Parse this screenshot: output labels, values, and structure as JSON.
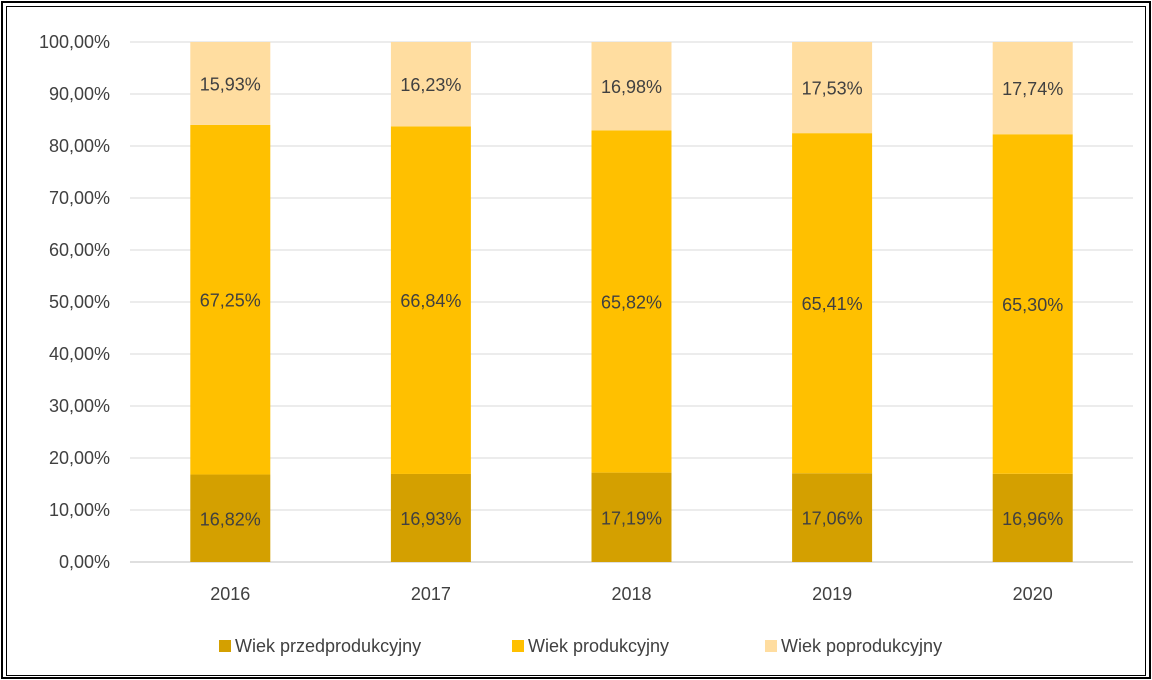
{
  "chart_data": {
    "type": "bar",
    "stacked": true,
    "categories": [
      "2016",
      "2017",
      "2018",
      "2019",
      "2020"
    ],
    "series": [
      {
        "name": "Wiek przedprodukcyjny",
        "values": [
          16.82,
          16.93,
          17.19,
          17.06,
          16.96
        ],
        "labels": [
          "16,82%",
          "16,93%",
          "17,19%",
          "17,06%",
          "16,96%"
        ],
        "color": "#D4A000"
      },
      {
        "name": "Wiek produkcyjny",
        "values": [
          67.25,
          66.84,
          65.82,
          65.41,
          65.3
        ],
        "labels": [
          "67,25%",
          "66,84%",
          "65,82%",
          "65,41%",
          "65,30%"
        ],
        "color": "#FFC000"
      },
      {
        "name": "Wiek poprodukcyjny",
        "values": [
          15.93,
          16.23,
          16.98,
          17.53,
          17.74
        ],
        "labels": [
          "15,93%",
          "16,23%",
          "16,98%",
          "17,53%",
          "17,74%"
        ],
        "color": "#FFDDA0"
      }
    ],
    "ylim": [
      0,
      100
    ],
    "yticks": [
      "0,00%",
      "10,00%",
      "20,00%",
      "30,00%",
      "40,00%",
      "50,00%",
      "60,00%",
      "70,00%",
      "80,00%",
      "90,00%",
      "100,00%"
    ],
    "grid": true,
    "legend": "bottom"
  }
}
